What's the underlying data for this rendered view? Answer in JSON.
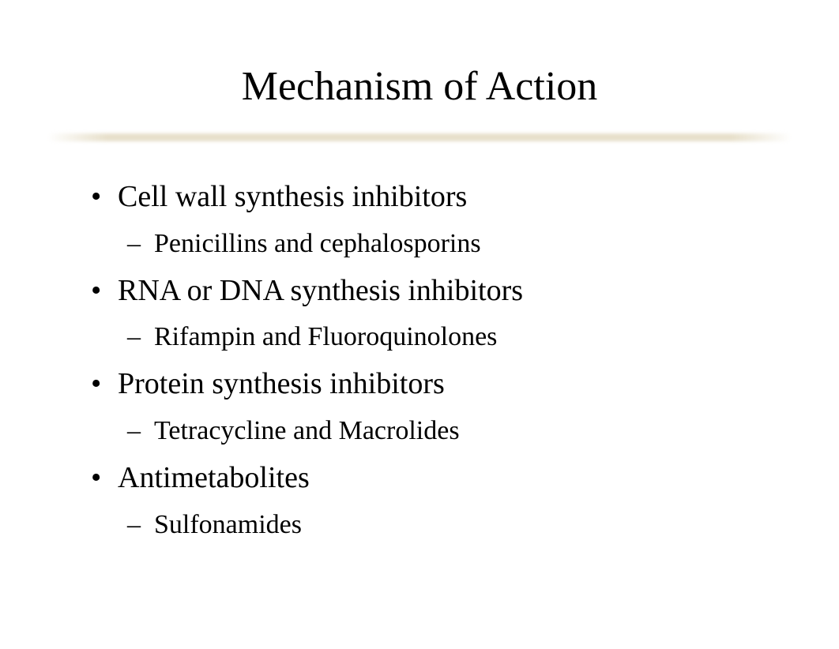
{
  "slide": {
    "title": "Mechanism of Action",
    "background_color": "#ffffff",
    "text_color": "#000000",
    "divider_color": "#e6dec8",
    "title_fontsize": 52,
    "l1_fontsize": 38,
    "l2_fontsize": 34,
    "font_family": "Times New Roman",
    "items": [
      {
        "text": "Cell wall synthesis inhibitors",
        "sub": [
          {
            "text": "Penicillins and cephalosporins"
          }
        ]
      },
      {
        "text": "RNA or DNA synthesis inhibitors",
        "sub": [
          {
            "text": "Rifampin and Fluoroquinolones"
          }
        ]
      },
      {
        "text": "Protein synthesis inhibitors",
        "sub": [
          {
            "text": "Tetracycline and Macrolides"
          }
        ]
      },
      {
        "text": "Antimetabolites",
        "sub": [
          {
            "text": "Sulfonamides"
          }
        ]
      }
    ]
  }
}
